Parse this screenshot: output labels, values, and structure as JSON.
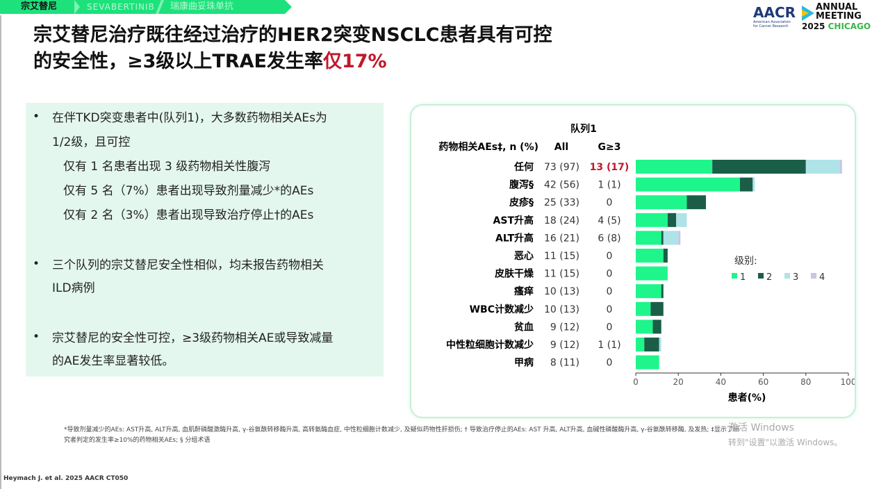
{
  "banner": {
    "drug_cn": "宗艾替尼",
    "drug_en": "Sevabertinib",
    "other": "瑞康曲妥珠单抗"
  },
  "title": {
    "line1": "宗艾替尼治疗既往经过治疗的HER2突变NSCLC患者具有可控",
    "line2": "的安全性，≥3级以上TRAE发生率",
    "highlight": "仅17%"
  },
  "logo": {
    "text": "AACR",
    "sub1": "American Association",
    "sub2": "for Cancer Research",
    "annual": "ANNUAL",
    "meeting": "MEETING",
    "year": "2025",
    "city": "CHICAGO"
  },
  "bullets": [
    {
      "text": "在伴TKD突变患者中(队列1)，大多数药物相关AEs为",
      "text2": "1/2级，且可控",
      "subs": [
        "仅有 1 名患者出现 3 级药物相关性腹泻",
        "仅有 5 名（7%）患者出现导致剂量减少*的AEs",
        "仅有 2 名（3%）患者出现导致治疗停止†的AEs"
      ]
    },
    {
      "text": "三个队列的宗艾替尼安全性相似，均未报告药物相关",
      "text2": "ILD病例"
    },
    {
      "text": "宗艾替尼的安全性可控，≥3级药物相关AE或导致减量",
      "text2": "的AE发生率显著较低。"
    }
  ],
  "chart_data": {
    "type": "bar",
    "stacked": true,
    "orientation": "horizontal",
    "title": "队列1",
    "col_headers": {
      "label": "药物相关AEs‡, n (%)",
      "all": "All",
      "g3": "G≥3"
    },
    "categories": [
      "任何",
      "腹泻§",
      "皮疹§",
      "AST升高",
      "ALT升高",
      "恶心",
      "皮肤干燥",
      "瘙痒",
      "WBC计数减少",
      "贫血",
      "中性粒细胞计数减少",
      "甲病"
    ],
    "all": [
      "73 (97)",
      "42 (56)",
      "25 (33)",
      "18 (24)",
      "16 (21)",
      "11 (15)",
      "11 (15)",
      "10 (13)",
      "10 (13)",
      "9 (12)",
      "9 (12)",
      "8 (11)"
    ],
    "g3": [
      "13 (17)",
      "1 (1)",
      "0",
      "4 (5)",
      "6 (8)",
      "0",
      "0",
      "0",
      "0",
      "0",
      "1 (1)",
      "0"
    ],
    "series": [
      {
        "name": "1",
        "color": "#1ef58a",
        "values": [
          36,
          49,
          24,
          15,
          12,
          13,
          15,
          12,
          7,
          8,
          4,
          11
        ]
      },
      {
        "name": "2",
        "color": "#1a5e48",
        "values": [
          44,
          6,
          9,
          4,
          1,
          2,
          0,
          1,
          6,
          4,
          7,
          0
        ]
      },
      {
        "name": "3",
        "color": "#aee3e8",
        "values": [
          16,
          1,
          0,
          5,
          7,
          0,
          0,
          0,
          0,
          0,
          1,
          0
        ]
      },
      {
        "name": "4",
        "color": "#c6c6e6",
        "values": [
          1,
          0,
          0,
          0,
          1,
          0,
          0,
          0,
          0,
          0,
          0,
          0
        ]
      }
    ],
    "legend_title": "级别:",
    "legend_position": "right",
    "xlabel": "患者(%)",
    "xlim": [
      0,
      100
    ],
    "xticks": [
      "0",
      "20",
      "40",
      "60",
      "80",
      "100"
    ],
    "highlight_color": "#c0182b"
  },
  "footnote": {
    "line1": "*导致剂量减少的AEs: AST升高, ALT升高, 血肌酐磷酸激酶升高, γ-谷氨酰转移酶升高, 高转氨酶血症, 中性粒细胞计数减少, 及疑似药物性肝损伤; † 导致治疗停止的AEs: AST 升高, ALT升高, 血碱性磷酸酶升高, γ-谷氨酰转移酶, 及发热; ‡显示了研",
    "line2": "究者判定的发生率≥10%的药物相关AEs; § 分组术语"
  },
  "citation": "Heymach J. et al. 2025 AACR CT050",
  "watermark": {
    "line1": "激活 Windows",
    "line2": "转到\"设置\"以激活 Windows。"
  }
}
